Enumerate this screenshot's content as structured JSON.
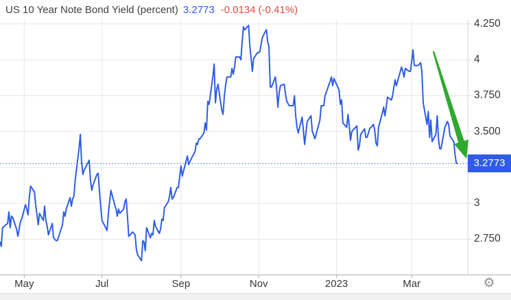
{
  "header": {
    "title": "US 10 Year Note Bond Yield (percent)",
    "last_value": "3.2773",
    "change": "-0.0134",
    "change_pct": "(-0.41%)"
  },
  "badge": {
    "label": "3.2773"
  },
  "footer": {
    "settings_icon_glyph": "⚙"
  },
  "colors": {
    "line_blue": "#2e5ce6",
    "change_red": "#db4b41",
    "arrow_green": "#2fa92f",
    "grid": "#e7e7e7",
    "axis_bottom": "#adadad",
    "axis_right": "#d4d4d4",
    "label_text": "#373737",
    "badge_bg": "#2e5ce6",
    "badge_text": "#ffffff",
    "footer_bg": "#f1f1f1",
    "icon_gray": "#8f8f8f"
  },
  "chart_data": {
    "type": "line",
    "title": "US 10 Year Note Bond Yield (percent)",
    "grid": true,
    "legend": "none",
    "x_range": [
      "2022-04-12",
      "2023-04-14"
    ],
    "ylim": [
      2.503,
      4.283
    ],
    "y_ticks": [
      {
        "value": 4.25,
        "label": "4.250"
      },
      {
        "value": 4.0,
        "label": "4"
      },
      {
        "value": 3.75,
        "label": "3.750"
      },
      {
        "value": 3.5,
        "label": "3.500"
      },
      {
        "value": 3.25,
        "label": ""
      },
      {
        "value": 3.0,
        "label": "3"
      },
      {
        "value": 2.75,
        "label": "2.750"
      }
    ],
    "x_ticks": [
      {
        "date": "2022-05-01",
        "label": "May"
      },
      {
        "date": "2022-07-01",
        "label": "Jul"
      },
      {
        "date": "2022-09-01",
        "label": "Sep"
      },
      {
        "date": "2022-11-01",
        "label": "Nov"
      },
      {
        "date": "2023-01-01",
        "label": "2023"
      },
      {
        "date": "2023-03-01",
        "label": "Mar"
      }
    ],
    "current_value": 3.2773,
    "current_value_line": "dotted",
    "annotations": [
      {
        "type": "arrow",
        "from_date": "2023-03-18",
        "from_value": 4.06,
        "to_date": "2023-04-13",
        "to_value": 3.31,
        "color_key": "arrow_green"
      }
    ],
    "series": [
      {
        "name": "US 10 Year Note Bond Yield",
        "points": [
          [
            "2022-04-12",
            2.73
          ],
          [
            "2022-04-13",
            2.7
          ],
          [
            "2022-04-14",
            2.83
          ],
          [
            "2022-04-18",
            2.86
          ],
          [
            "2022-04-19",
            2.94
          ],
          [
            "2022-04-20",
            2.83
          ],
          [
            "2022-04-21",
            2.91
          ],
          [
            "2022-04-22",
            2.9
          ],
          [
            "2022-04-25",
            2.82
          ],
          [
            "2022-04-26",
            2.77
          ],
          [
            "2022-04-27",
            2.82
          ],
          [
            "2022-04-28",
            2.87
          ],
          [
            "2022-04-29",
            2.89
          ],
          [
            "2022-05-02",
            2.99
          ],
          [
            "2022-05-03",
            2.96
          ],
          [
            "2022-05-04",
            2.92
          ],
          [
            "2022-05-05",
            3.04
          ],
          [
            "2022-05-06",
            3.12
          ],
          [
            "2022-05-09",
            3.08
          ],
          [
            "2022-05-10",
            2.99
          ],
          [
            "2022-05-11",
            2.92
          ],
          [
            "2022-05-12",
            2.85
          ],
          [
            "2022-05-13",
            2.93
          ],
          [
            "2022-05-16",
            2.88
          ],
          [
            "2022-05-17",
            2.98
          ],
          [
            "2022-05-18",
            2.88
          ],
          [
            "2022-05-19",
            2.84
          ],
          [
            "2022-05-20",
            2.78
          ],
          [
            "2022-05-23",
            2.86
          ],
          [
            "2022-05-24",
            2.76
          ],
          [
            "2022-05-25",
            2.75
          ],
          [
            "2022-05-26",
            2.74
          ],
          [
            "2022-05-27",
            2.74
          ],
          [
            "2022-05-31",
            2.85
          ],
          [
            "2022-06-01",
            2.94
          ],
          [
            "2022-06-02",
            2.91
          ],
          [
            "2022-06-03",
            2.96
          ],
          [
            "2022-06-06",
            3.04
          ],
          [
            "2022-06-07",
            2.98
          ],
          [
            "2022-06-08",
            3.03
          ],
          [
            "2022-06-09",
            3.05
          ],
          [
            "2022-06-10",
            3.16
          ],
          [
            "2022-06-13",
            3.38
          ],
          [
            "2022-06-14",
            3.48
          ],
          [
            "2022-06-15",
            3.29
          ],
          [
            "2022-06-16",
            3.2
          ],
          [
            "2022-06-17",
            3.23
          ],
          [
            "2022-06-21",
            3.3
          ],
          [
            "2022-06-22",
            3.16
          ],
          [
            "2022-06-23",
            3.09
          ],
          [
            "2022-06-24",
            3.13
          ],
          [
            "2022-06-27",
            3.2
          ],
          [
            "2022-06-28",
            3.21
          ],
          [
            "2022-06-29",
            3.09
          ],
          [
            "2022-06-30",
            2.98
          ],
          [
            "2022-07-01",
            2.88
          ],
          [
            "2022-07-05",
            2.81
          ],
          [
            "2022-07-06",
            2.93
          ],
          [
            "2022-07-07",
            3.01
          ],
          [
            "2022-07-08",
            3.09
          ],
          [
            "2022-07-11",
            2.99
          ],
          [
            "2022-07-12",
            2.96
          ],
          [
            "2022-07-13",
            2.91
          ],
          [
            "2022-07-14",
            2.96
          ],
          [
            "2022-07-15",
            2.93
          ],
          [
            "2022-07-18",
            2.96
          ],
          [
            "2022-07-19",
            3.01
          ],
          [
            "2022-07-20",
            3.03
          ],
          [
            "2022-07-21",
            2.91
          ],
          [
            "2022-07-22",
            2.77
          ],
          [
            "2022-07-25",
            2.8
          ],
          [
            "2022-07-26",
            2.79
          ],
          [
            "2022-07-27",
            2.78
          ],
          [
            "2022-07-28",
            2.68
          ],
          [
            "2022-07-29",
            2.64
          ],
          [
            "2022-08-01",
            2.6
          ],
          [
            "2022-08-02",
            2.74
          ],
          [
            "2022-08-03",
            2.73
          ],
          [
            "2022-08-04",
            2.67
          ],
          [
            "2022-08-05",
            2.83
          ],
          [
            "2022-08-08",
            2.76
          ],
          [
            "2022-08-09",
            2.79
          ],
          [
            "2022-08-10",
            2.78
          ],
          [
            "2022-08-11",
            2.88
          ],
          [
            "2022-08-12",
            2.84
          ],
          [
            "2022-08-15",
            2.79
          ],
          [
            "2022-08-16",
            2.82
          ],
          [
            "2022-08-17",
            2.89
          ],
          [
            "2022-08-18",
            2.88
          ],
          [
            "2022-08-19",
            2.97
          ],
          [
            "2022-08-22",
            3.01
          ],
          [
            "2022-08-23",
            3.05
          ],
          [
            "2022-08-24",
            3.11
          ],
          [
            "2022-08-25",
            3.03
          ],
          [
            "2022-08-26",
            3.04
          ],
          [
            "2022-08-29",
            3.11
          ],
          [
            "2022-08-30",
            3.11
          ],
          [
            "2022-08-31",
            3.19
          ],
          [
            "2022-09-01",
            3.26
          ],
          [
            "2022-09-02",
            3.19
          ],
          [
            "2022-09-06",
            3.33
          ],
          [
            "2022-09-07",
            3.27
          ],
          [
            "2022-09-08",
            3.29
          ],
          [
            "2022-09-09",
            3.31
          ],
          [
            "2022-09-12",
            3.36
          ],
          [
            "2022-09-13",
            3.42
          ],
          [
            "2022-09-14",
            3.41
          ],
          [
            "2022-09-15",
            3.45
          ],
          [
            "2022-09-16",
            3.45
          ],
          [
            "2022-09-19",
            3.49
          ],
          [
            "2022-09-20",
            3.56
          ],
          [
            "2022-09-21",
            3.51
          ],
          [
            "2022-09-22",
            3.71
          ],
          [
            "2022-09-23",
            3.69
          ],
          [
            "2022-09-26",
            3.88
          ],
          [
            "2022-09-27",
            3.97
          ],
          [
            "2022-09-28",
            3.7
          ],
          [
            "2022-09-29",
            3.79
          ],
          [
            "2022-09-30",
            3.83
          ],
          [
            "2022-10-03",
            3.65
          ],
          [
            "2022-10-04",
            3.62
          ],
          [
            "2022-10-05",
            3.75
          ],
          [
            "2022-10-06",
            3.82
          ],
          [
            "2022-10-07",
            3.88
          ],
          [
            "2022-10-10",
            3.88
          ],
          [
            "2022-10-11",
            3.94
          ],
          [
            "2022-10-12",
            3.9
          ],
          [
            "2022-10-13",
            3.95
          ],
          [
            "2022-10-14",
            4.02
          ],
          [
            "2022-10-17",
            4.02
          ],
          [
            "2022-10-18",
            4.0
          ],
          [
            "2022-10-19",
            4.13
          ],
          [
            "2022-10-20",
            4.23
          ],
          [
            "2022-10-21",
            4.21
          ],
          [
            "2022-10-24",
            4.24
          ],
          [
            "2022-10-25",
            4.1
          ],
          [
            "2022-10-26",
            4.01
          ],
          [
            "2022-10-27",
            3.92
          ],
          [
            "2022-10-28",
            4.01
          ],
          [
            "2022-10-31",
            4.05
          ],
          [
            "2022-11-01",
            4.05
          ],
          [
            "2022-11-02",
            4.06
          ],
          [
            "2022-11-03",
            4.12
          ],
          [
            "2022-11-04",
            4.16
          ],
          [
            "2022-11-07",
            4.21
          ],
          [
            "2022-11-08",
            4.13
          ],
          [
            "2022-11-09",
            4.09
          ],
          [
            "2022-11-10",
            3.81
          ],
          [
            "2022-11-11",
            3.81
          ],
          [
            "2022-11-14",
            3.88
          ],
          [
            "2022-11-15",
            3.8
          ],
          [
            "2022-11-16",
            3.67
          ],
          [
            "2022-11-17",
            3.77
          ],
          [
            "2022-11-18",
            3.82
          ],
          [
            "2022-11-21",
            3.83
          ],
          [
            "2022-11-22",
            3.76
          ],
          [
            "2022-11-23",
            3.71
          ],
          [
            "2022-11-25",
            3.68
          ],
          [
            "2022-11-28",
            3.68
          ],
          [
            "2022-11-29",
            3.75
          ],
          [
            "2022-11-30",
            3.61
          ],
          [
            "2022-12-01",
            3.53
          ],
          [
            "2022-12-02",
            3.49
          ],
          [
            "2022-12-05",
            3.6
          ],
          [
            "2022-12-06",
            3.51
          ],
          [
            "2022-12-07",
            3.41
          ],
          [
            "2022-12-08",
            3.49
          ],
          [
            "2022-12-09",
            3.57
          ],
          [
            "2022-12-12",
            3.61
          ],
          [
            "2022-12-13",
            3.5
          ],
          [
            "2022-12-14",
            3.48
          ],
          [
            "2022-12-15",
            3.45
          ],
          [
            "2022-12-16",
            3.48
          ],
          [
            "2022-12-19",
            3.58
          ],
          [
            "2022-12-20",
            3.68
          ],
          [
            "2022-12-21",
            3.68
          ],
          [
            "2022-12-22",
            3.68
          ],
          [
            "2022-12-23",
            3.75
          ],
          [
            "2022-12-27",
            3.85
          ],
          [
            "2022-12-28",
            3.88
          ],
          [
            "2022-12-29",
            3.82
          ],
          [
            "2022-12-30",
            3.87
          ],
          [
            "2023-01-03",
            3.79
          ],
          [
            "2023-01-04",
            3.69
          ],
          [
            "2023-01-05",
            3.72
          ],
          [
            "2023-01-06",
            3.56
          ],
          [
            "2023-01-09",
            3.53
          ],
          [
            "2023-01-10",
            3.62
          ],
          [
            "2023-01-11",
            3.54
          ],
          [
            "2023-01-12",
            3.44
          ],
          [
            "2023-01-13",
            3.5
          ],
          [
            "2023-01-17",
            3.54
          ],
          [
            "2023-01-18",
            3.37
          ],
          [
            "2023-01-19",
            3.4
          ],
          [
            "2023-01-20",
            3.48
          ],
          [
            "2023-01-23",
            3.52
          ],
          [
            "2023-01-24",
            3.46
          ],
          [
            "2023-01-25",
            3.46
          ],
          [
            "2023-01-26",
            3.49
          ],
          [
            "2023-01-27",
            3.52
          ],
          [
            "2023-01-30",
            3.55
          ],
          [
            "2023-01-31",
            3.51
          ],
          [
            "2023-02-01",
            3.42
          ],
          [
            "2023-02-02",
            3.4
          ],
          [
            "2023-02-03",
            3.53
          ],
          [
            "2023-02-06",
            3.63
          ],
          [
            "2023-02-07",
            3.67
          ],
          [
            "2023-02-08",
            3.61
          ],
          [
            "2023-02-09",
            3.67
          ],
          [
            "2023-02-10",
            3.74
          ],
          [
            "2023-02-13",
            3.72
          ],
          [
            "2023-02-14",
            3.75
          ],
          [
            "2023-02-15",
            3.81
          ],
          [
            "2023-02-16",
            3.86
          ],
          [
            "2023-02-17",
            3.82
          ],
          [
            "2023-02-21",
            3.95
          ],
          [
            "2023-02-22",
            3.92
          ],
          [
            "2023-02-23",
            3.88
          ],
          [
            "2023-02-24",
            3.94
          ],
          [
            "2023-02-27",
            3.92
          ],
          [
            "2023-02-28",
            3.92
          ],
          [
            "2023-03-01",
            3.99
          ],
          [
            "2023-03-02",
            4.07
          ],
          [
            "2023-03-03",
            3.96
          ],
          [
            "2023-03-06",
            3.96
          ],
          [
            "2023-03-07",
            3.97
          ],
          [
            "2023-03-08",
            3.98
          ],
          [
            "2023-03-09",
            3.92
          ],
          [
            "2023-03-10",
            3.7
          ],
          [
            "2023-03-13",
            3.55
          ],
          [
            "2023-03-14",
            3.64
          ],
          [
            "2023-03-15",
            3.46
          ],
          [
            "2023-03-16",
            3.58
          ],
          [
            "2023-03-17",
            3.43
          ],
          [
            "2023-03-20",
            3.48
          ],
          [
            "2023-03-21",
            3.61
          ],
          [
            "2023-03-22",
            3.45
          ],
          [
            "2023-03-23",
            3.38
          ],
          [
            "2023-03-24",
            3.38
          ],
          [
            "2023-03-27",
            3.53
          ],
          [
            "2023-03-28",
            3.55
          ],
          [
            "2023-03-29",
            3.57
          ],
          [
            "2023-03-30",
            3.55
          ],
          [
            "2023-03-31",
            3.47
          ],
          [
            "2023-04-03",
            3.43
          ],
          [
            "2023-04-04",
            3.34
          ],
          [
            "2023-04-05",
            3.28
          ],
          [
            "2023-04-06",
            3.2773
          ]
        ]
      }
    ]
  }
}
